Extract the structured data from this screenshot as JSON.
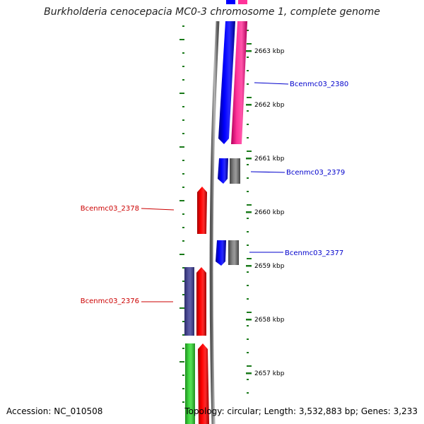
{
  "title": "Burkholderia cenocepacia MC0-3 chromosome 1, complete genome",
  "footer": {
    "accession": "Accession: NC_010508",
    "summary": "Topology: circular; Length: 3,532,883 bp; Genes: 3,233"
  },
  "ticks": [
    {
      "label": "2663 kbp",
      "kbp": 2663
    },
    {
      "label": "2662 kbp",
      "kbp": 2662
    },
    {
      "label": "2661 kbp",
      "kbp": 2661
    },
    {
      "label": "2660 kbp",
      "kbp": 2660
    },
    {
      "label": "2659 kbp",
      "kbp": 2659
    },
    {
      "label": "2658 kbp",
      "kbp": 2658
    },
    {
      "label": "2657 kbp",
      "kbp": 2657
    }
  ],
  "gene_labels": [
    {
      "name": "Bcenmc03_2380",
      "strand": "forward"
    },
    {
      "name": "Bcenmc03_2379",
      "strand": "forward"
    },
    {
      "name": "Bcenmc03_2378",
      "strand": "reverse"
    },
    {
      "name": "Bcenmc03_2377",
      "strand": "forward"
    },
    {
      "name": "Bcenmc03_2376",
      "strand": "reverse"
    }
  ],
  "colors": {
    "forward_label": "#0000cc",
    "reverse_label": "#cc0000",
    "forward_cds": "#0000ff",
    "forward_gene": "#ff3399",
    "forward_other": "#777777",
    "reverse_cds": "#ff0000",
    "reverse_other": "#4b4b9b",
    "green_feature": "#33cc33",
    "backbone": "#888888",
    "ruler": "#1a7a1a"
  }
}
